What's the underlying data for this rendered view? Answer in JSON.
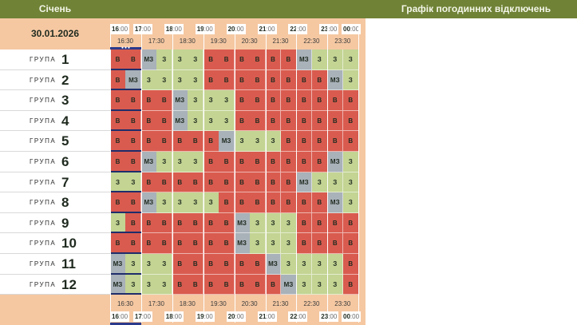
{
  "header": {
    "month": "Січень",
    "title": "Графік погодинних відключень",
    "date": "30.01.2026"
  },
  "hours": [
    {
      "h": "16",
      "m": ":00"
    },
    {
      "h": "17",
      "m": ":00"
    },
    {
      "h": "18",
      "m": ":00"
    },
    {
      "h": "19",
      "m": ":00"
    },
    {
      "h": "20",
      "m": ":00"
    },
    {
      "h": "21",
      "m": ":00"
    },
    {
      "h": "22",
      "m": ":00"
    },
    {
      "h": "23",
      "m": ":00"
    },
    {
      "h": "00",
      "m": ":00"
    }
  ],
  "half_hours": [
    "16:30",
    "17:30",
    "18:30",
    "19:30",
    "20:30",
    "21:30",
    "22:30",
    "23:30"
  ],
  "group_word": "ГРУПА",
  "legend": {
    "v": "В",
    "z": "З",
    "mz": "МЗ"
  },
  "colors": {
    "v": "#d95b4f",
    "z": "#c3d493",
    "mz": "#a9b1b9",
    "header": "#6f8236",
    "sheet": "#f5c8a2"
  },
  "groups": [
    {
      "num": "1",
      "slots": [
        "v",
        "v",
        "mz",
        "z",
        "z",
        "z",
        "v",
        "v",
        "v",
        "v",
        "v",
        "v",
        "mz",
        "z",
        "z",
        "z"
      ]
    },
    {
      "num": "2",
      "slots": [
        "v",
        "mz",
        "z",
        "z",
        "z",
        "z",
        "v",
        "v",
        "v",
        "v",
        "v",
        "v",
        "v",
        "v",
        "mz",
        "z"
      ]
    },
    {
      "num": "3",
      "slots": [
        "v",
        "v",
        "v",
        "v",
        "mz",
        "z",
        "z",
        "z",
        "v",
        "v",
        "v",
        "v",
        "v",
        "v",
        "v",
        "v"
      ]
    },
    {
      "num": "4",
      "slots": [
        "v",
        "v",
        "v",
        "v",
        "mz",
        "z",
        "z",
        "z",
        "v",
        "v",
        "v",
        "v",
        "v",
        "v",
        "v",
        "v"
      ]
    },
    {
      "num": "5",
      "slots": [
        "v",
        "v",
        "v",
        "v",
        "v",
        "v",
        "v",
        "mz",
        "z",
        "z",
        "z",
        "v",
        "v",
        "v",
        "v",
        "v"
      ]
    },
    {
      "num": "6",
      "slots": [
        "v",
        "v",
        "mz",
        "z",
        "z",
        "z",
        "v",
        "v",
        "v",
        "v",
        "v",
        "v",
        "v",
        "v",
        "mz",
        "z"
      ]
    },
    {
      "num": "7",
      "slots": [
        "z",
        "z",
        "v",
        "v",
        "v",
        "v",
        "v",
        "v",
        "v",
        "v",
        "v",
        "v",
        "mz",
        "z",
        "z",
        "z"
      ]
    },
    {
      "num": "8",
      "slots": [
        "v",
        "v",
        "mz",
        "z",
        "z",
        "z",
        "z",
        "v",
        "v",
        "v",
        "v",
        "v",
        "v",
        "v",
        "mz",
        "z"
      ]
    },
    {
      "num": "9",
      "slots": [
        "z",
        "v",
        "v",
        "v",
        "v",
        "v",
        "v",
        "v",
        "mz",
        "z",
        "z",
        "z",
        "v",
        "v",
        "v",
        "v"
      ]
    },
    {
      "num": "10",
      "slots": [
        "v",
        "v",
        "v",
        "v",
        "v",
        "v",
        "v",
        "v",
        "mz",
        "z",
        "z",
        "z",
        "v",
        "v",
        "v",
        "v"
      ]
    },
    {
      "num": "11",
      "slots": [
        "mz",
        "z",
        "z",
        "z",
        "v",
        "v",
        "v",
        "v",
        "v",
        "v",
        "mz",
        "z",
        "z",
        "z",
        "z",
        "v"
      ]
    },
    {
      "num": "12",
      "slots": [
        "mz",
        "z",
        "z",
        "z",
        "v",
        "v",
        "v",
        "v",
        "v",
        "v",
        "v",
        "mz",
        "z",
        "z",
        "z",
        "v"
      ]
    }
  ]
}
